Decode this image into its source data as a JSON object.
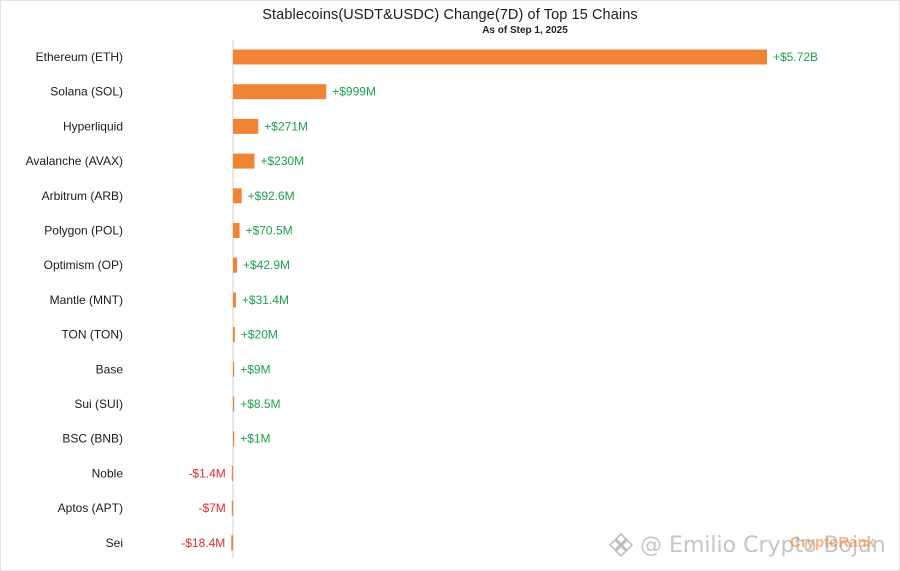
{
  "chart_data": {
    "type": "bar",
    "orientation": "horizontal",
    "title": "Stablecoins(USDT&USDC) Change(7D)  of Top 15 Chains",
    "subtitle": "As of Step 1, 2025",
    "categories": [
      "Ethereum (ETH)",
      "Solana (SOL)",
      "Hyperliquid",
      "Avalanche (AVAX)",
      "Arbitrum (ARB)",
      "Polygon (POL)",
      "Optimism (OP)",
      "Mantle (MNT)",
      "TON (TON)",
      "Base",
      "Sui (SUI)",
      "BSC (BNB)",
      "Noble",
      "Aptos (APT)",
      "Sei"
    ],
    "values": [
      5720,
      999,
      271,
      230,
      92.6,
      70.5,
      42.9,
      31.4,
      20,
      9,
      8.5,
      1,
      -1.4,
      -7,
      -18.4
    ],
    "value_unit": "$M",
    "data_labels": [
      "+$5.72B",
      "+$999M",
      "+$271M",
      "+$230M",
      "+$92.6M",
      "+$70.5M",
      "+$42.9M",
      "+$31.4M",
      "+$20M",
      "+$9M",
      "+$8.5M",
      "+$1M",
      "-$1.4M",
      "-$7M",
      "-$18.4M"
    ],
    "grid": false,
    "legend": "none"
  },
  "colors": {
    "bar": "#f08434",
    "positive_label": "#1aa34a",
    "negative_label": "#e02c2c",
    "axis": "#cfcfcf"
  },
  "watermark": {
    "text": "@ Emilio Crypto Bojan",
    "brand": "CryptoRank"
  }
}
